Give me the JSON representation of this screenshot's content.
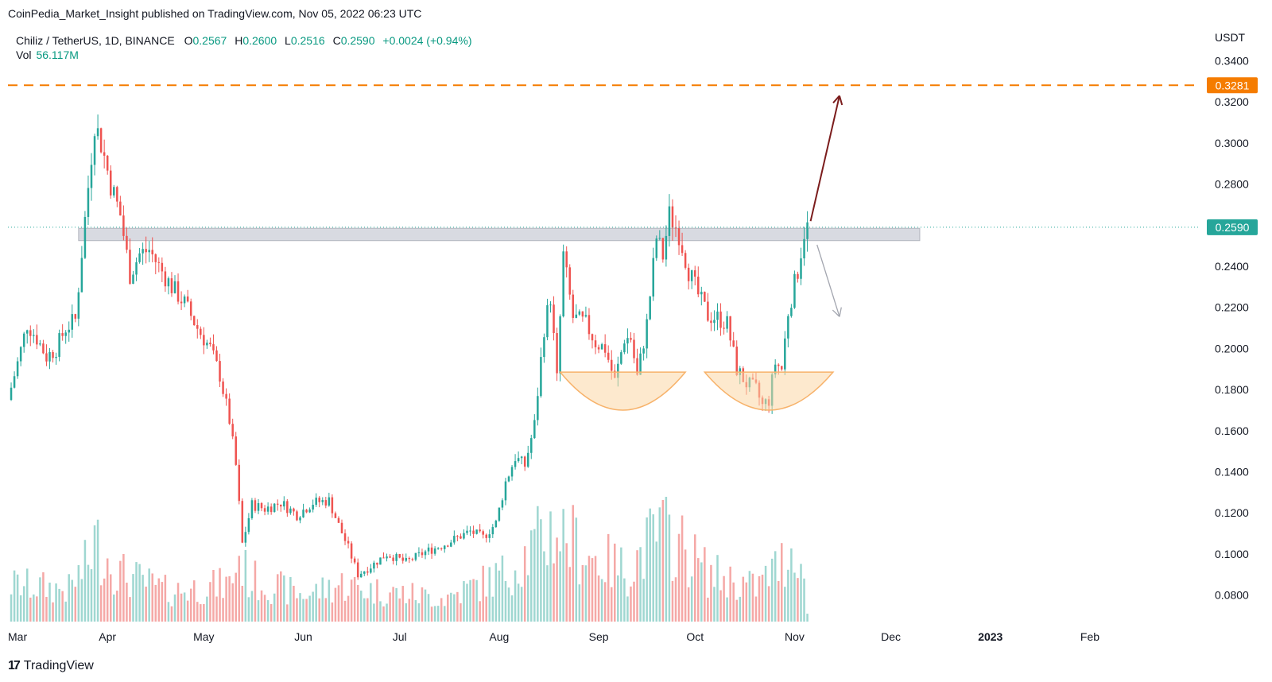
{
  "header": {
    "publisher_text": "CoinPedia_Market_Insight published on TradingView.com, Nov 05, 2022 06:23 UTC"
  },
  "legend": {
    "symbol": "Chiliz / TetherUS, 1D, BINANCE",
    "open_key": "O",
    "open": "0.2567",
    "high_key": "H",
    "high": "0.2600",
    "low_key": "L",
    "low": "0.2516",
    "close_key": "C",
    "close": "0.2590",
    "change": "+0.0024 (+0.94%)",
    "vol_label": "Vol",
    "vol_value": "56.117M"
  },
  "price_axis": {
    "currency": "USDT",
    "ticks": [
      "0.3400",
      "0.3200",
      "0.3000",
      "0.2800",
      "0.2400",
      "0.2200",
      "0.2000",
      "0.1800",
      "0.1600",
      "0.1400",
      "0.1200",
      "0.1000",
      "0.0800"
    ],
    "current_price_label": "0.2590",
    "resistance_label": "0.3281"
  },
  "time_axis": {
    "labels": [
      "Mar",
      "Apr",
      "May",
      "Jun",
      "Jul",
      "Aug",
      "Sep",
      "Oct",
      "Nov",
      "Dec",
      "2023",
      "Feb"
    ]
  },
  "colors": {
    "up": "#26a69a",
    "down": "#ef5350",
    "vol_up": "#9fd7d1",
    "vol_down": "#f5a8a6",
    "resistance": "#f57c00",
    "zone": "#d1d4dc",
    "bull_arrow": "#7b1c1c",
    "bear_arrow": "#a3a6af",
    "cup": "#fbd7a6"
  },
  "chart_data": {
    "type": "candlestick",
    "title": "Chiliz / TetherUS, 1D, BINANCE",
    "x_range": [
      "2022-03-01",
      "2023-02-28"
    ],
    "y_range": [
      0.064,
      0.358
    ],
    "price_ticks": [
      0.34,
      0.32,
      0.3,
      0.28,
      0.26,
      0.24,
      0.22,
      0.2,
      0.18,
      0.16,
      0.14,
      0.12,
      0.1,
      0.08
    ],
    "resistance_level": 0.3281,
    "current_price": 0.259,
    "support_zone": [
      0.2525,
      0.2585
    ],
    "projections": [
      {
        "direction": "up",
        "from": [
          "2022-11-06",
          0.262
        ],
        "to": [
          "2022-11-15",
          0.323
        ]
      },
      {
        "direction": "down",
        "from": [
          "2022-11-08",
          0.2505
        ],
        "to": [
          "2022-11-15",
          0.2155
        ]
      }
    ],
    "patterns": [
      {
        "name": "cup",
        "x": [
          "2022-08-20",
          "2022-09-28"
        ],
        "rim": 0.1885,
        "bottom": 0.17
      },
      {
        "name": "cup",
        "x": [
          "2022-10-04",
          "2022-11-13"
        ],
        "rim": 0.1885,
        "bottom": 0.17
      }
    ],
    "close_anchors": [
      [
        "2022-03-01",
        0.175
      ],
      [
        "2022-03-04",
        0.193
      ],
      [
        "2022-03-07",
        0.212
      ],
      [
        "2022-03-10",
        0.205
      ],
      [
        "2022-03-13",
        0.196
      ],
      [
        "2022-03-16",
        0.2
      ],
      [
        "2022-03-19",
        0.21
      ],
      [
        "2022-03-22",
        0.214
      ],
      [
        "2022-03-25",
        0.263
      ],
      [
        "2022-03-28",
        0.31
      ],
      [
        "2022-03-30",
        0.3
      ],
      [
        "2022-04-02",
        0.28
      ],
      [
        "2022-04-05",
        0.265
      ],
      [
        "2022-04-08",
        0.236
      ],
      [
        "2022-04-11",
        0.246
      ],
      [
        "2022-04-14",
        0.248
      ],
      [
        "2022-04-17",
        0.24
      ],
      [
        "2022-04-21",
        0.23
      ],
      [
        "2022-04-25",
        0.222
      ],
      [
        "2022-04-29",
        0.21
      ],
      [
        "2022-05-03",
        0.2
      ],
      [
        "2022-05-06",
        0.187
      ],
      [
        "2022-05-09",
        0.165
      ],
      [
        "2022-05-11",
        0.143
      ],
      [
        "2022-05-13",
        0.105
      ],
      [
        "2022-05-16",
        0.124
      ],
      [
        "2022-05-20",
        0.122
      ],
      [
        "2022-05-25",
        0.125
      ],
      [
        "2022-05-30",
        0.119
      ],
      [
        "2022-06-04",
        0.125
      ],
      [
        "2022-06-09",
        0.126
      ],
      [
        "2022-06-12",
        0.114
      ],
      [
        "2022-06-15",
        0.103
      ],
      [
        "2022-06-18",
        0.09
      ],
      [
        "2022-06-22",
        0.094
      ],
      [
        "2022-06-27",
        0.1
      ],
      [
        "2022-07-03",
        0.096
      ],
      [
        "2022-07-09",
        0.101
      ],
      [
        "2022-07-14",
        0.104
      ],
      [
        "2022-07-19",
        0.108
      ],
      [
        "2022-07-23",
        0.111
      ],
      [
        "2022-07-27",
        0.108
      ],
      [
        "2022-07-31",
        0.115
      ],
      [
        "2022-08-03",
        0.135
      ],
      [
        "2022-08-06",
        0.147
      ],
      [
        "2022-08-09",
        0.143
      ],
      [
        "2022-08-12",
        0.163
      ],
      [
        "2022-08-15",
        0.21
      ],
      [
        "2022-08-17",
        0.225
      ],
      [
        "2022-08-19",
        0.185
      ],
      [
        "2022-08-21",
        0.245
      ],
      [
        "2022-08-24",
        0.215
      ],
      [
        "2022-08-28",
        0.212
      ],
      [
        "2022-08-31",
        0.203
      ],
      [
        "2022-09-03",
        0.2
      ],
      [
        "2022-09-06",
        0.184
      ],
      [
        "2022-09-09",
        0.205
      ],
      [
        "2022-09-11",
        0.205
      ],
      [
        "2022-09-13",
        0.186
      ],
      [
        "2022-09-16",
        0.212
      ],
      [
        "2022-09-19",
        0.254
      ],
      [
        "2022-09-21",
        0.245
      ],
      [
        "2022-09-23",
        0.265
      ],
      [
        "2022-09-26",
        0.256
      ],
      [
        "2022-09-29",
        0.238
      ],
      [
        "2022-10-02",
        0.226
      ],
      [
        "2022-10-05",
        0.216
      ],
      [
        "2022-10-08",
        0.215
      ],
      [
        "2022-10-11",
        0.212
      ],
      [
        "2022-10-14",
        0.19
      ],
      [
        "2022-10-17",
        0.183
      ],
      [
        "2022-10-20",
        0.18
      ],
      [
        "2022-10-22",
        0.172
      ],
      [
        "2022-10-24",
        0.175
      ],
      [
        "2022-10-26",
        0.193
      ],
      [
        "2022-10-28",
        0.19
      ],
      [
        "2022-10-30",
        0.218
      ],
      [
        "2022-11-02",
        0.238
      ],
      [
        "2022-11-04",
        0.2567
      ],
      [
        "2022-11-05",
        0.259
      ]
    ],
    "volume_anchors": [
      [
        "2022-03-01",
        35
      ],
      [
        "2022-03-20",
        30
      ],
      [
        "2022-03-26",
        55
      ],
      [
        "2022-03-28",
        75
      ],
      [
        "2022-04-05",
        45
      ],
      [
        "2022-04-20",
        28
      ],
      [
        "2022-05-09",
        35
      ],
      [
        "2022-05-12",
        60
      ],
      [
        "2022-05-15",
        40
      ],
      [
        "2022-06-01",
        25
      ],
      [
        "2022-06-13",
        35
      ],
      [
        "2022-06-20",
        30
      ],
      [
        "2022-07-15",
        22
      ],
      [
        "2022-08-03",
        45
      ],
      [
        "2022-08-12",
        70
      ],
      [
        "2022-08-18",
        88
      ],
      [
        "2022-08-22",
        80
      ],
      [
        "2022-08-30",
        60
      ],
      [
        "2022-09-10",
        48
      ],
      [
        "2022-09-20",
        85
      ],
      [
        "2022-09-27",
        70
      ],
      [
        "2022-10-05",
        45
      ],
      [
        "2022-10-20",
        32
      ],
      [
        "2022-10-28",
        55
      ],
      [
        "2022-11-02",
        75
      ],
      [
        "2022-11-05",
        10
      ]
    ]
  }
}
